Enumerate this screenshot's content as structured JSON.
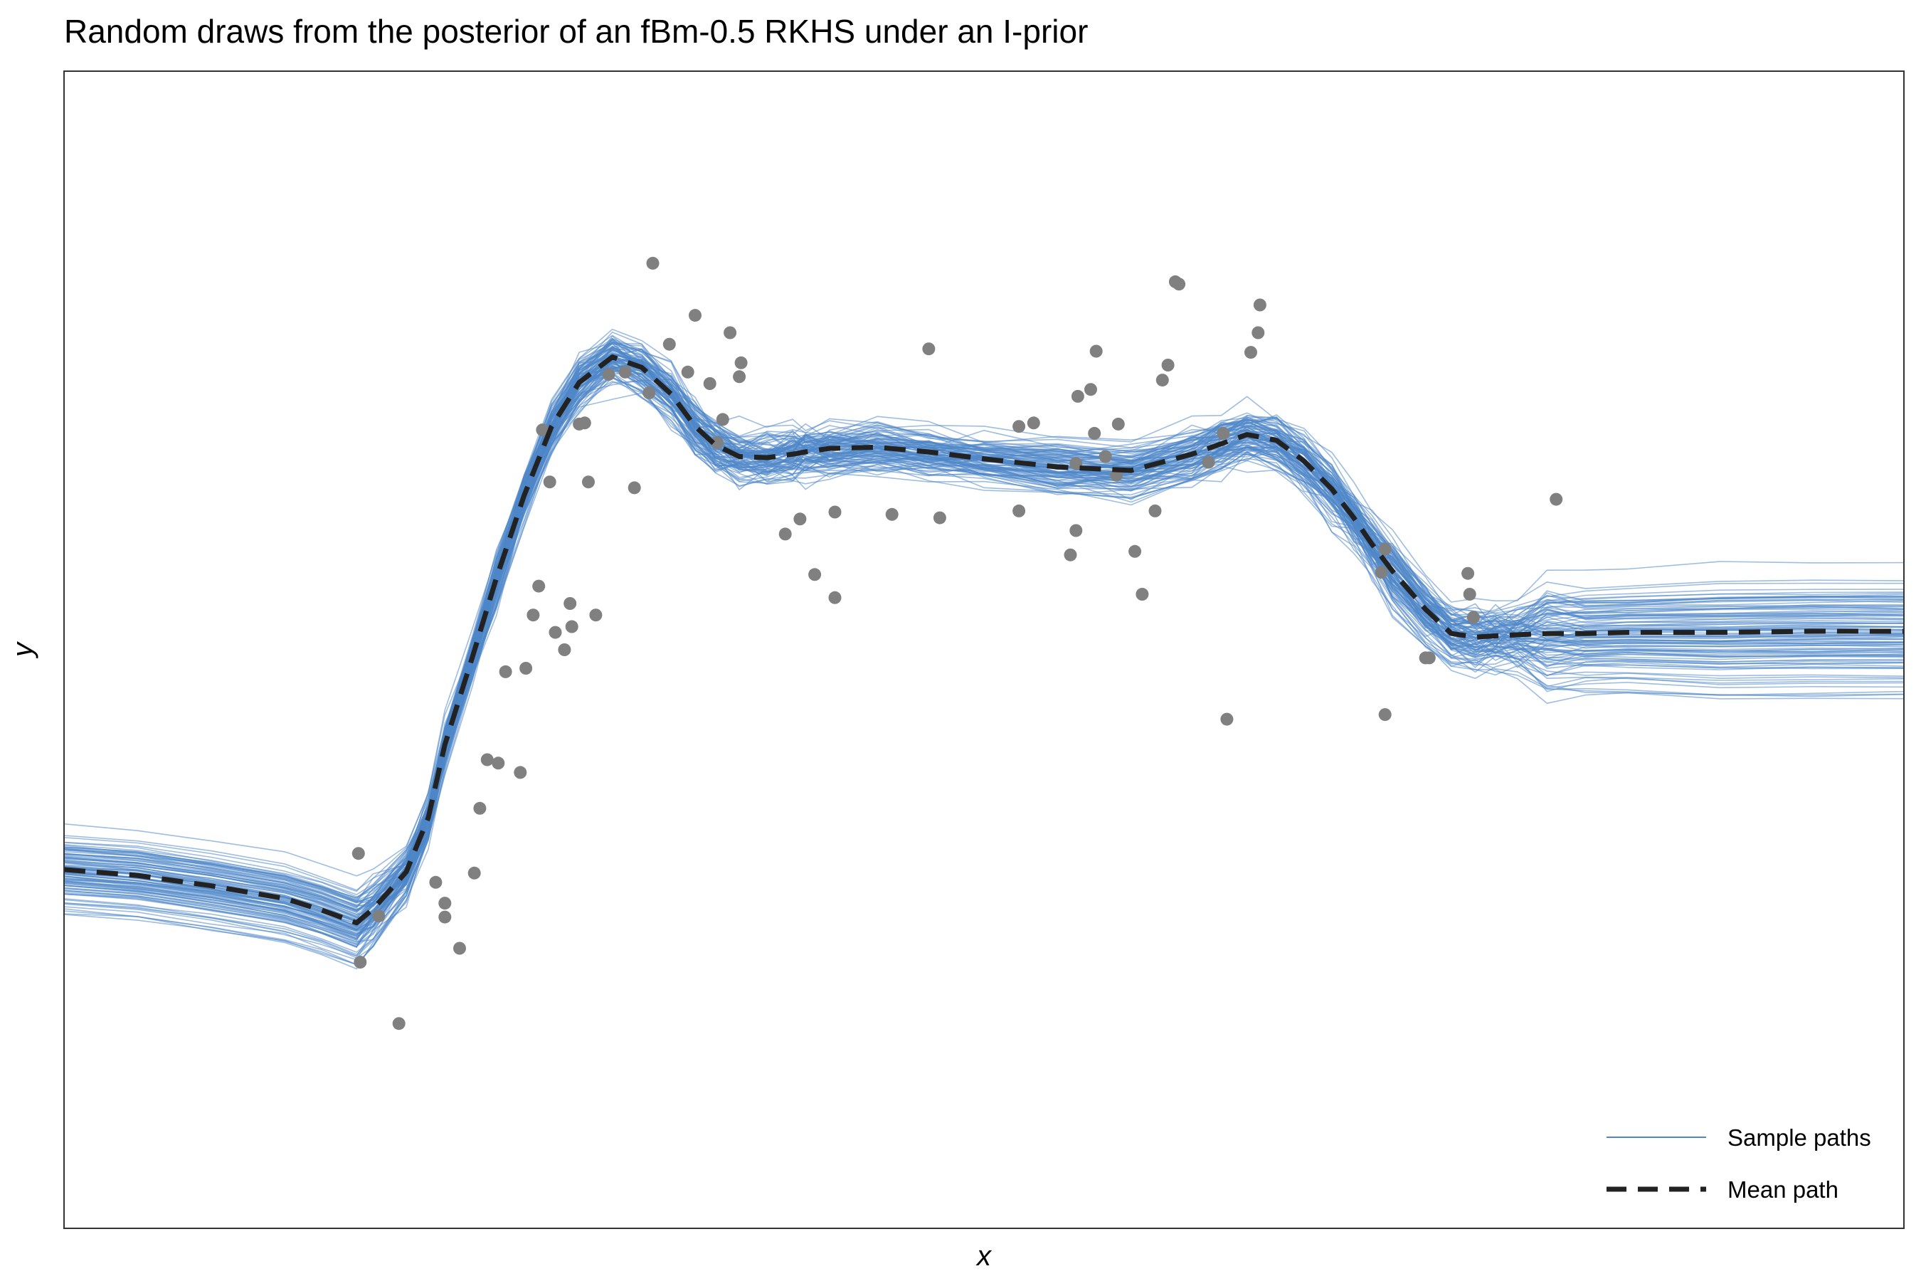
{
  "chart_data": {
    "type": "line",
    "title": "Random draws from the posterior of an fBm-0.5 RKHS under an I-prior",
    "xlabel": "x",
    "ylabel": "y",
    "xlim": [
      0,
      100
    ],
    "ylim": [
      0,
      100
    ],
    "grid": false,
    "legend": {
      "placement": "bottom-right",
      "entries": [
        {
          "label": "Sample paths",
          "style": "thin-solid"
        },
        {
          "label": "Mean path",
          "style": "thick-dashed"
        }
      ]
    },
    "colors": {
      "sample_paths": "#4f87c9",
      "mean_path": "#222222",
      "points": "#808080",
      "frame": "#333333"
    },
    "n_sample_paths": 100,
    "mean_path": {
      "x": [
        0,
        4,
        8,
        12,
        14,
        15.9,
        16.8,
        18.6,
        19.8,
        20.7,
        22.2,
        23.5,
        25.0,
        26.5,
        28.0,
        29.8,
        31.4,
        33.0,
        34.3,
        35.4,
        36.7,
        38.2,
        39.6,
        40.3,
        41.6,
        44.2,
        47.0,
        50.0,
        54.0,
        58.0,
        61.3,
        62.9,
        64.3,
        65.9,
        67.4,
        68.9,
        70.1,
        71.1,
        72.2,
        74.0,
        75.4,
        76.7,
        77.8,
        79.0,
        80.6,
        82.7,
        85,
        90,
        95,
        100
      ],
      "y": [
        31.0,
        30.5,
        29.6,
        28.5,
        27.5,
        26.4,
        27.6,
        30.8,
        35.5,
        41.8,
        49.4,
        56.2,
        63.3,
        69.3,
        73.1,
        75.3,
        74.4,
        72.1,
        69.3,
        67.7,
        66.7,
        66.6,
        66.9,
        67.1,
        67.4,
        67.5,
        67.1,
        66.5,
        65.8,
        65.5,
        66.9,
        67.8,
        68.6,
        68.1,
        66.3,
        63.9,
        61.4,
        59.1,
        56.8,
        53.5,
        51.4,
        51.1,
        51.2,
        51.3,
        51.4,
        51.4,
        51.5,
        51.5,
        51.6,
        51.6
      ]
    },
    "points": {
      "x": [
        16.0,
        16.1,
        17.1,
        18.2,
        20.2,
        20.7,
        20.7,
        21.5,
        22.3,
        22.6,
        23.0,
        23.6,
        24.0,
        24.8,
        25.1,
        25.5,
        25.8,
        26.0,
        26.4,
        26.7,
        27.2,
        27.5,
        27.6,
        28.0,
        28.3,
        28.5,
        28.9,
        29.6,
        30.5,
        31.0,
        31.8,
        32.0,
        32.9,
        33.9,
        34.3,
        35.1,
        35.5,
        35.8,
        36.2,
        36.7,
        36.8,
        39.2,
        40.0,
        40.8,
        41.9,
        41.9,
        45.0,
        47.0,
        47.6,
        51.9,
        51.9,
        52.7,
        54.7,
        55.0,
        55.0,
        55.1,
        55.8,
        56.0,
        56.1,
        56.6,
        57.2,
        57.3,
        58.2,
        58.6,
        59.3,
        59.7,
        60.0,
        60.4,
        60.6,
        62.2,
        63.0,
        63.2,
        64.5,
        64.9,
        65.0,
        71.6,
        71.8,
        74.0,
        74.2,
        71.8,
        76.3,
        76.4,
        76.6,
        81.1
      ],
      "y": [
        32.4,
        23.0,
        27.0,
        17.7,
        29.9,
        26.9,
        28.1,
        24.2,
        30.7,
        36.3,
        40.5,
        40.2,
        48.1,
        39.4,
        48.4,
        53.0,
        55.5,
        69.0,
        64.5,
        51.5,
        50.0,
        54.0,
        52.0,
        69.5,
        69.6,
        64.5,
        53.0,
        73.8,
        74.0,
        64.0,
        72.2,
        83.4,
        76.4,
        74.0,
        78.9,
        73.0,
        67.9,
        69.9,
        77.4,
        73.6,
        74.8,
        60.0,
        61.3,
        56.5,
        54.5,
        61.9,
        61.7,
        76.0,
        61.4,
        62.0,
        69.3,
        69.6,
        58.2,
        66.1,
        60.3,
        71.9,
        72.5,
        68.7,
        75.8,
        66.7,
        65.1,
        69.5,
        58.5,
        54.8,
        62.0,
        73.3,
        74.6,
        81.8,
        81.6,
        66.2,
        68.7,
        44.0,
        75.7,
        77.4,
        79.8,
        56.7,
        58.7,
        49.3,
        49.3,
        44.4,
        56.6,
        54.8,
        52.8,
        63.0
      ]
    }
  }
}
